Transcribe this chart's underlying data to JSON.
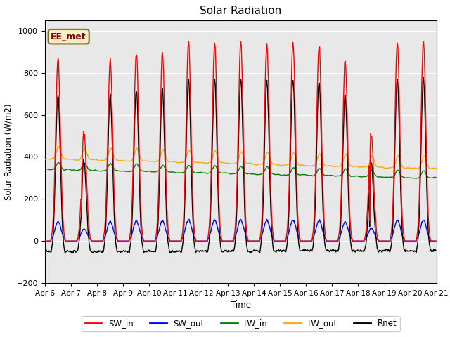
{
  "title": "Solar Radiation",
  "ylabel": "Solar Radiation (W/m2)",
  "xlabel": "Time",
  "ylim": [
    -200,
    1050
  ],
  "xlim": [
    0,
    720
  ],
  "background_color": "#e8e8e8",
  "annotation_text": "EE_met",
  "annotation_bg": "#f5f0c8",
  "annotation_border": "#8B6914",
  "x_tick_labels": [
    "Apr 6",
    "Apr 7",
    "Apr 8",
    "Apr 9",
    "Apr 10",
    "Apr 11",
    "Apr 12",
    "Apr 13",
    "Apr 14",
    "Apr 15",
    "Apr 16",
    "Apr 17",
    "Apr 18",
    "Apr 19",
    "Apr 20",
    "Apr 21"
  ],
  "x_tick_positions": [
    0,
    48,
    96,
    144,
    192,
    240,
    288,
    336,
    384,
    432,
    480,
    528,
    576,
    624,
    672,
    720
  ],
  "yticks": [
    -200,
    0,
    200,
    400,
    600,
    800,
    1000
  ],
  "series_colors": {
    "SW_in": "red",
    "SW_out": "blue",
    "LW_in": "green",
    "LW_out": "orange",
    "Rnet": "black"
  }
}
